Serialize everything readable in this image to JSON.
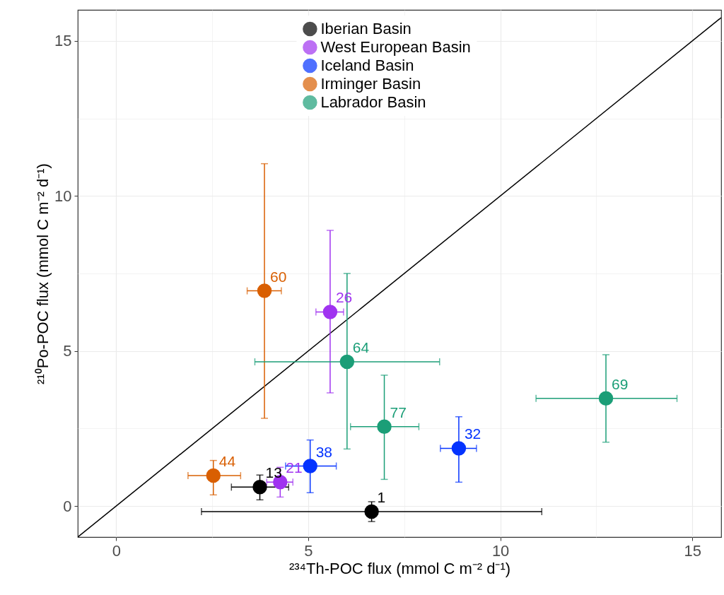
{
  "chart_data": {
    "type": "scatter",
    "xlabel": "²³⁴Th-POC flux (mmol C m⁻² d⁻¹)",
    "ylabel": "²¹⁰Po-POC flux (mmol C m⁻² d⁻¹)",
    "xlim": [
      -1,
      15.75
    ],
    "ylim": [
      -1,
      16
    ],
    "xticks": [
      0,
      {
        "value": 2.5,
        "label": null
      },
      5,
      {
        "value": 7.5,
        "label": null
      },
      10,
      {
        "value": 12.5,
        "label": null
      },
      15
    ],
    "yticks": [
      0,
      {
        "value": 2.5,
        "label": null
      },
      5,
      {
        "value": 7.5,
        "label": null
      },
      10,
      {
        "value": 12.5,
        "label": null
      },
      15
    ],
    "grid": true,
    "legend": "top",
    "marker": "circle",
    "annotations": [
      {
        "text": "13",
        "x": 3.74,
        "y": 0.61
      },
      {
        "text": "1",
        "x": 6.65,
        "y": -0.18
      },
      {
        "text": "21",
        "x": 4.27,
        "y": 0.77
      },
      {
        "text": "26",
        "x": 5.57,
        "y": 6.26
      },
      {
        "text": "38",
        "x": 5.05,
        "y": 1.29
      },
      {
        "text": "32",
        "x": 8.92,
        "y": 1.86
      },
      {
        "text": "44",
        "x": 2.53,
        "y": 0.98
      },
      {
        "text": "60",
        "x": 3.86,
        "y": 6.94
      },
      {
        "text": "64",
        "x": 6.01,
        "y": 4.65
      },
      {
        "text": "77",
        "x": 6.98,
        "y": 2.56
      },
      {
        "text": "69",
        "x": 12.75,
        "y": 3.47
      }
    ],
    "series": [
      {
        "name": "Iberian Basin",
        "color": "#000000",
        "x": [
          3.74,
          6.65
        ],
        "values": [
          0.61,
          -0.18
        ],
        "errors": [
          [
            0.2,
            1.0
          ],
          [
            -0.5,
            0.14
          ]
        ],
        "xerrors": [
          [
            3.0,
            4.49
          ],
          [
            2.22,
            11.08
          ]
        ]
      },
      {
        "name": "West European Basin",
        "color": "#a033f0",
        "x": [
          4.27,
          5.57
        ],
        "values": [
          0.77,
          6.26
        ],
        "errors": [
          [
            0.29,
            1.25
          ],
          [
            3.65,
            8.89
          ]
        ],
        "xerrors": [
          [
            3.92,
            4.6
          ],
          [
            5.2,
            5.92
          ]
        ]
      },
      {
        "name": "Iceland Basin",
        "color": "#0433ff",
        "x": [
          5.05,
          8.92
        ],
        "values": [
          1.29,
          1.86
        ],
        "errors": [
          [
            0.43,
            2.13
          ],
          [
            0.77,
            2.88
          ]
        ],
        "xerrors": [
          [
            4.41,
            5.73
          ],
          [
            8.44,
            9.38
          ]
        ]
      },
      {
        "name": "Irminger Basin",
        "color": "#d95f02",
        "x": [
          2.53,
          3.86
        ],
        "values": [
          0.98,
          6.94
        ],
        "errors": [
          [
            0.36,
            1.47
          ],
          [
            2.83,
            11.04
          ]
        ],
        "xerrors": [
          [
            1.87,
            3.24
          ],
          [
            3.41,
            4.3
          ]
        ]
      },
      {
        "name": "Labrador Basin",
        "color": "#1b9e77",
        "x": [
          6.01,
          6.98,
          12.75
        ],
        "values": [
          4.65,
          2.56,
          3.47
        ],
        "errors": [
          [
            1.84,
            7.5
          ],
          [
            0.86,
            4.22
          ],
          [
            2.06,
            4.88
          ]
        ],
        "xerrors": [
          [
            3.61,
            8.42
          ],
          [
            6.1,
            7.88
          ],
          [
            10.93,
            14.6
          ]
        ]
      },
      {
        "type": "line",
        "color": "#000000",
        "line_style": "solid",
        "marker": "none",
        "x": [
          -1,
          15.75
        ],
        "values": [
          -1,
          15.75
        ]
      }
    ]
  }
}
